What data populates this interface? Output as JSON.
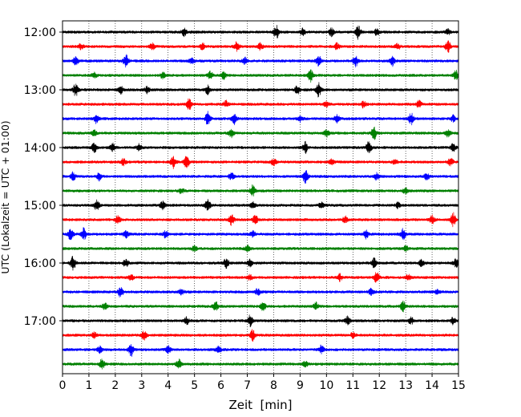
{
  "chart_data": {
    "type": "line",
    "title": "",
    "xlabel": "Zeit  [min]",
    "ylabel": "UTC (Lokalzeit = UTC + 01:00)",
    "xlim": [
      0,
      15
    ],
    "x_ticks": [
      0,
      1,
      2,
      3,
      4,
      5,
      6,
      7,
      8,
      9,
      10,
      11,
      12,
      13,
      14,
      15
    ],
    "x_tick_labels": [
      "0",
      "1",
      "2",
      "3",
      "4",
      "5",
      "6",
      "7",
      "8",
      "9",
      "10",
      "11",
      "12",
      "13",
      "14",
      "15"
    ],
    "y_tick_labels": [
      "12:00",
      "13:00",
      "14:00",
      "15:00",
      "16:00",
      "17:00"
    ],
    "grid": "vertical dotted",
    "trace_interval_min": 15,
    "color_cycle": [
      "#000000",
      "#ff0000",
      "#0000ff",
      "#008000"
    ],
    "series": [
      {
        "start": "12:00",
        "color": "#000000",
        "events": [
          [
            4.6,
            0.6
          ],
          [
            8.1,
            1.0
          ],
          [
            9.1,
            0.5
          ],
          [
            10.2,
            0.6
          ],
          [
            11.2,
            1.0
          ],
          [
            11.9,
            0.5
          ],
          [
            14.6,
            0.4
          ]
        ]
      },
      {
        "start": "12:15",
        "color": "#ff0000",
        "events": [
          [
            0.7,
            0.4
          ],
          [
            3.4,
            0.5
          ],
          [
            5.3,
            0.5
          ],
          [
            6.6,
            0.7
          ],
          [
            7.5,
            0.5
          ],
          [
            10.4,
            0.5
          ],
          [
            12.7,
            0.4
          ],
          [
            14.6,
            0.9
          ]
        ]
      },
      {
        "start": "12:30",
        "color": "#0000ff",
        "events": [
          [
            0.5,
            0.6
          ],
          [
            2.4,
            0.9
          ],
          [
            4.9,
            0.5
          ],
          [
            6.9,
            0.5
          ],
          [
            9.7,
            0.8
          ],
          [
            11.1,
            0.8
          ],
          [
            12.5,
            0.7
          ]
        ]
      },
      {
        "start": "12:45",
        "color": "#008000",
        "events": [
          [
            1.2,
            0.4
          ],
          [
            3.8,
            0.4
          ],
          [
            5.6,
            0.6
          ],
          [
            6.1,
            0.5
          ],
          [
            9.4,
            0.9
          ],
          [
            14.9,
            0.8
          ]
        ]
      },
      {
        "start": "13:00",
        "color": "#000000",
        "events": [
          [
            0.5,
            0.9
          ],
          [
            2.2,
            0.6
          ],
          [
            3.2,
            0.5
          ],
          [
            5.5,
            0.6
          ],
          [
            8.9,
            0.6
          ],
          [
            9.7,
            1.0
          ]
        ]
      },
      {
        "start": "13:15",
        "color": "#ff0000",
        "events": [
          [
            4.8,
            0.8
          ],
          [
            6.2,
            0.5
          ],
          [
            10.0,
            0.4
          ],
          [
            11.4,
            0.5
          ],
          [
            13.5,
            0.5
          ]
        ]
      },
      {
        "start": "13:30",
        "color": "#0000ff",
        "events": [
          [
            1.3,
            0.8
          ],
          [
            5.5,
            1.0
          ],
          [
            6.5,
            0.8
          ],
          [
            9.0,
            0.5
          ],
          [
            10.4,
            0.6
          ],
          [
            13.2,
            0.9
          ],
          [
            14.8,
            0.5
          ]
        ]
      },
      {
        "start": "13:45",
        "color": "#008000",
        "events": [
          [
            1.2,
            0.4
          ],
          [
            6.4,
            0.6
          ],
          [
            10.0,
            0.6
          ],
          [
            11.8,
            1.0
          ],
          [
            14.6,
            0.5
          ]
        ]
      },
      {
        "start": "14:00",
        "color": "#000000",
        "events": [
          [
            1.2,
            0.7
          ],
          [
            1.9,
            0.6
          ],
          [
            2.9,
            0.5
          ],
          [
            9.2,
            0.8
          ],
          [
            11.6,
            1.0
          ],
          [
            14.8,
            0.6
          ]
        ]
      },
      {
        "start": "14:15",
        "color": "#ff0000",
        "events": [
          [
            2.3,
            0.5
          ],
          [
            4.2,
            0.9
          ],
          [
            4.7,
            0.9
          ],
          [
            8.0,
            0.5
          ],
          [
            10.2,
            0.4
          ],
          [
            12.6,
            0.4
          ],
          [
            14.7,
            0.6
          ]
        ]
      },
      {
        "start": "14:30",
        "color": "#0000ff",
        "events": [
          [
            0.4,
            0.6
          ],
          [
            1.4,
            0.6
          ],
          [
            6.4,
            0.5
          ],
          [
            9.2,
            1.0
          ],
          [
            11.9,
            0.5
          ],
          [
            13.8,
            0.5
          ]
        ]
      },
      {
        "start": "14:45",
        "color": "#008000",
        "events": [
          [
            4.5,
            0.4
          ],
          [
            7.2,
            0.8
          ],
          [
            13.0,
            0.4
          ]
        ]
      },
      {
        "start": "15:00",
        "color": "#000000",
        "events": [
          [
            1.3,
            0.7
          ],
          [
            3.8,
            0.6
          ],
          [
            5.5,
            0.9
          ],
          [
            7.2,
            0.5
          ],
          [
            9.8,
            0.4
          ],
          [
            12.7,
            0.4
          ]
        ]
      },
      {
        "start": "15:15",
        "color": "#ff0000",
        "events": [
          [
            2.1,
            0.6
          ],
          [
            6.4,
            0.8
          ],
          [
            7.3,
            0.6
          ],
          [
            10.7,
            0.5
          ],
          [
            14.0,
            0.6
          ],
          [
            14.8,
            1.0
          ]
        ]
      },
      {
        "start": "15:30",
        "color": "#0000ff",
        "events": [
          [
            0.3,
            1.0
          ],
          [
            0.8,
            0.9
          ],
          [
            2.4,
            0.6
          ],
          [
            3.9,
            0.5
          ],
          [
            7.2,
            0.5
          ],
          [
            11.5,
            0.6
          ],
          [
            12.9,
            0.8
          ]
        ]
      },
      {
        "start": "15:45",
        "color": "#008000",
        "events": [
          [
            5.0,
            0.4
          ],
          [
            7.0,
            0.5
          ],
          [
            13.0,
            0.4
          ]
        ]
      },
      {
        "start": "16:00",
        "color": "#000000",
        "events": [
          [
            0.4,
            1.0
          ],
          [
            2.4,
            0.6
          ],
          [
            6.2,
            0.7
          ],
          [
            7.1,
            0.5
          ],
          [
            11.8,
            0.7
          ],
          [
            13.6,
            0.5
          ],
          [
            14.9,
            0.6
          ]
        ]
      },
      {
        "start": "16:15",
        "color": "#ff0000",
        "events": [
          [
            2.6,
            0.4
          ],
          [
            7.1,
            0.4
          ],
          [
            10.5,
            0.5
          ],
          [
            11.9,
            0.8
          ],
          [
            13.1,
            0.4
          ]
        ]
      },
      {
        "start": "16:30",
        "color": "#0000ff",
        "events": [
          [
            2.2,
            0.8
          ],
          [
            4.5,
            0.4
          ],
          [
            7.4,
            0.5
          ],
          [
            11.7,
            0.5
          ],
          [
            14.2,
            0.4
          ]
        ]
      },
      {
        "start": "16:45",
        "color": "#008000",
        "events": [
          [
            1.6,
            0.5
          ],
          [
            5.8,
            0.8
          ],
          [
            7.6,
            0.8
          ],
          [
            9.6,
            0.6
          ],
          [
            12.9,
            0.8
          ]
        ]
      },
      {
        "start": "17:00",
        "color": "#000000",
        "events": [
          [
            4.7,
            0.5
          ],
          [
            7.1,
            0.8
          ],
          [
            10.8,
            0.6
          ],
          [
            13.2,
            0.5
          ],
          [
            14.8,
            0.5
          ]
        ]
      },
      {
        "start": "17:15",
        "color": "#ff0000",
        "events": [
          [
            1.2,
            0.4
          ],
          [
            3.1,
            0.7
          ],
          [
            7.2,
            0.8
          ],
          [
            11.0,
            0.4
          ]
        ]
      },
      {
        "start": "17:30",
        "color": "#0000ff",
        "events": [
          [
            1.4,
            0.5
          ],
          [
            2.6,
            1.0
          ],
          [
            4.0,
            0.6
          ],
          [
            5.9,
            0.5
          ],
          [
            9.8,
            0.6
          ]
        ]
      },
      {
        "start": "17:45",
        "color": "#008000",
        "events": [
          [
            1.5,
            0.8
          ],
          [
            4.4,
            0.7
          ],
          [
            9.2,
            0.4
          ]
        ]
      }
    ]
  }
}
